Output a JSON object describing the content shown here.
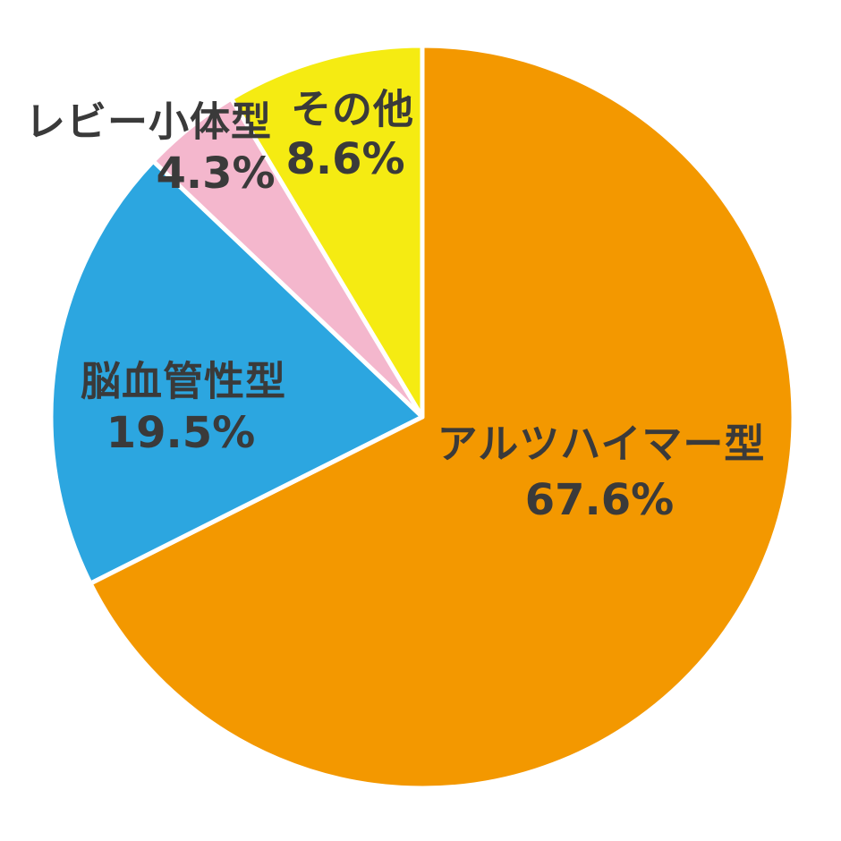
{
  "chart_data": {
    "type": "pie",
    "title": "",
    "direction": "clockwise",
    "start_angle_deg": 0,
    "slice_border_color": "#FFFFFF",
    "label_color": "#3A3A3A",
    "background": "#FFFFFF",
    "segments": [
      {
        "id": "alzheimer",
        "label": "アルツハイマー型",
        "value": 67.6,
        "pct_label": "67.6%",
        "color": "#F39800"
      },
      {
        "id": "vascular",
        "label": "脳血管性型",
        "value": 19.5,
        "pct_label": "19.5%",
        "color": "#2CA6E0"
      },
      {
        "id": "lewy-body",
        "label": "レビー小体型",
        "value": 4.3,
        "pct_label": "4.3%",
        "color": "#F4B7CD"
      },
      {
        "id": "other",
        "label": "その他",
        "value": 8.6,
        "pct_label": "8.6%",
        "color": "#F5EB12"
      }
    ]
  }
}
